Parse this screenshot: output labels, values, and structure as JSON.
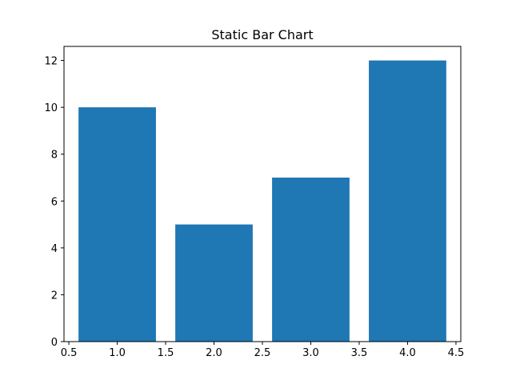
{
  "chart_data": {
    "type": "bar",
    "title": "Static Bar Chart",
    "xlabel": "",
    "ylabel": "",
    "x": [
      1,
      2,
      3,
      4
    ],
    "values": [
      10,
      5,
      7,
      12
    ],
    "bar_width": 0.8,
    "xlim": [
      0.45,
      4.55
    ],
    "ylim": [
      0,
      12.6
    ],
    "xticks": [
      0.5,
      1.0,
      1.5,
      2.0,
      2.5,
      3.0,
      3.5,
      4.0,
      4.5
    ],
    "xtick_labels": [
      "0.5",
      "1.0",
      "1.5",
      "2.0",
      "2.5",
      "3.0",
      "3.5",
      "4.0",
      "4.5"
    ],
    "yticks": [
      0,
      2,
      4,
      6,
      8,
      10,
      12
    ],
    "ytick_labels": [
      "0",
      "2",
      "4",
      "6",
      "8",
      "10",
      "12"
    ],
    "grid": false,
    "legend": false,
    "bar_color": "#1f77b4"
  }
}
